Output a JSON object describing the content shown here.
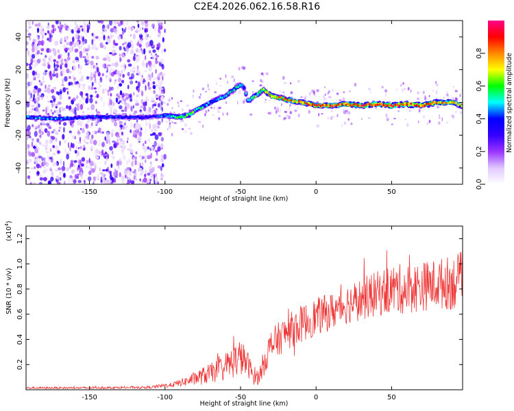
{
  "title": "C2E4.2026.062.16.58.R16",
  "chart_data": [
    {
      "type": "heatmap",
      "name": "spectrogram",
      "xlabel": "Height of straight line (km)",
      "ylabel": "Frequency (Hz)",
      "xlim": [
        -192,
        97
      ],
      "ylim": [
        -50,
        50
      ],
      "xticks": [
        -150,
        -100,
        -50,
        0,
        50
      ],
      "yticks": [
        -40,
        -20,
        0,
        20,
        40
      ],
      "colorbar": {
        "label": "Normalized spectral amplitude",
        "range": [
          0.0,
          1.0
        ],
        "ticks": [
          0.0,
          0.2,
          0.4,
          0.6,
          0.8
        ],
        "stops": [
          "#ffffff",
          "#e0c8ff",
          "#9933ff",
          "#3300ff",
          "#0000ff",
          "#00ffff",
          "#00ff00",
          "#ffff00",
          "#ff8800",
          "#ff0000",
          "#ff0088"
        ]
      },
      "noise_region_x": [
        -192,
        -100
      ],
      "ridge": {
        "x": [
          -192,
          -170,
          -150,
          -130,
          -110,
          -100,
          -90,
          -85,
          -80,
          -70,
          -60,
          -50,
          -48,
          -45,
          -40,
          -35,
          -30,
          -20,
          -10,
          0,
          10,
          20,
          30,
          40,
          50,
          60,
          70,
          80,
          90,
          97
        ],
        "y": [
          -9,
          -10,
          -9,
          -9,
          -9,
          -8,
          -9,
          -8,
          -5,
          0,
          4,
          11,
          10,
          1,
          4,
          8,
          4,
          2,
          0,
          -2,
          -2,
          -1,
          -2,
          -1,
          -2,
          -1,
          -2,
          0,
          0,
          -2
        ],
        "amp": [
          0.45,
          0.45,
          0.4,
          0.4,
          0.35,
          0.45,
          0.6,
          0.65,
          0.55,
          0.45,
          0.5,
          0.55,
          0.45,
          0.55,
          0.6,
          0.7,
          0.75,
          0.8,
          0.8,
          0.85,
          0.9,
          0.85,
          0.9,
          0.85,
          0.9,
          0.85,
          0.85,
          0.8,
          0.75,
          0.7
        ]
      }
    },
    {
      "type": "line",
      "name": "snr",
      "xlabel": "Height of straight line (km)",
      "ylabel": "SNR (10 * v/v)",
      "y_multiplier": "(x10",
      "y_multiplier_exp": "4",
      "y_multiplier_close": ")",
      "xlim": [
        -192,
        97
      ],
      "ylim": [
        0,
        1.3
      ],
      "xticks": [
        -150,
        -100,
        -50,
        0,
        50
      ],
      "yticks": [
        0.2,
        0.4,
        0.6,
        0.8,
        1.0,
        1.2
      ],
      "color": "#ee3333",
      "envelope": {
        "x": [
          -192,
          -150,
          -110,
          -95,
          -85,
          -75,
          -65,
          -58,
          -50,
          -45,
          -42,
          -38,
          -35,
          -30,
          -20,
          -10,
          0,
          10,
          20,
          30,
          40,
          50,
          60,
          70,
          80,
          90,
          97
        ],
        "base": [
          0.015,
          0.015,
          0.02,
          0.04,
          0.07,
          0.11,
          0.15,
          0.2,
          0.26,
          0.2,
          0.12,
          0.1,
          0.2,
          0.35,
          0.45,
          0.52,
          0.58,
          0.62,
          0.68,
          0.72,
          0.76,
          0.8,
          0.8,
          0.82,
          0.84,
          0.85,
          0.88
        ],
        "noise": [
          0.008,
          0.008,
          0.01,
          0.02,
          0.04,
          0.07,
          0.09,
          0.12,
          0.15,
          0.1,
          0.08,
          0.06,
          0.1,
          0.13,
          0.14,
          0.15,
          0.15,
          0.15,
          0.16,
          0.17,
          0.18,
          0.2,
          0.2,
          0.2,
          0.2,
          0.22,
          0.22
        ]
      }
    }
  ]
}
